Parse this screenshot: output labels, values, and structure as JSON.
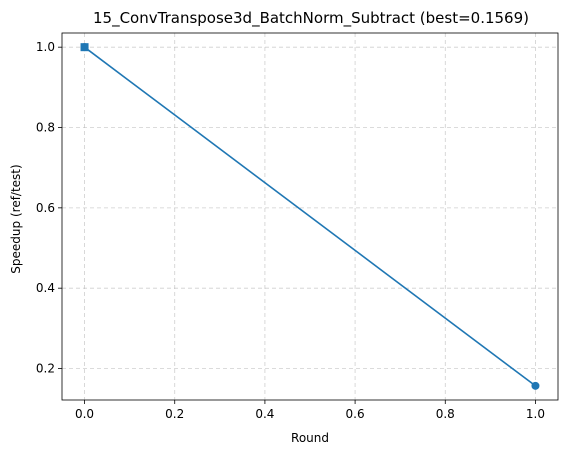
{
  "chart_data": {
    "type": "line",
    "title": "15_ConvTranspose3d_BatchNorm_Subtract (best=0.1569)",
    "xlabel": "Round",
    "ylabel": "Speedup (ref/test)",
    "xlim": [
      -0.05,
      1.05
    ],
    "ylim": [
      0.1216,
      1.0353
    ],
    "grid": true,
    "x_ticks": [
      0.0,
      0.2,
      0.4,
      0.6,
      0.8,
      1.0
    ],
    "y_ticks": [
      0.2,
      0.4,
      0.6,
      0.8,
      1.0
    ],
    "x_tick_labels": [
      "0.0",
      "0.2",
      "0.4",
      "0.6",
      "0.8",
      "1.0"
    ],
    "y_tick_labels": [
      "0.2",
      "0.4",
      "0.6",
      "0.8",
      "1.0"
    ],
    "series": [
      {
        "name": "speedup",
        "x": [
          0,
          1
        ],
        "values": [
          1.0,
          0.1569
        ],
        "color": "#1f77b4",
        "marker": "circle"
      }
    ],
    "highlight": {
      "name": "baseline",
      "x": 0,
      "y": 1.0,
      "marker": "square",
      "color": "#1f77b4"
    }
  }
}
